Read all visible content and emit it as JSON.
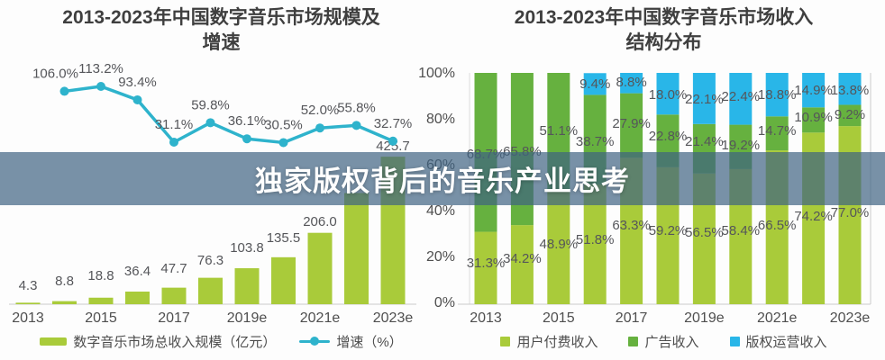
{
  "overlay_banner": {
    "title": "独家版权背后的音乐产业思考",
    "background": "rgba(62,99,130,0.70)",
    "text_color": "#ffffff"
  },
  "colors": {
    "bar_green": "#a9cb3a",
    "ads_green": "#66b13f",
    "copyright_blue": "#29b6e8",
    "growth_teal": "#2eb3cc",
    "label_gray": "#55565a",
    "axis_gray": "#4f4f4f",
    "axis_line": "#cccccc"
  },
  "chart_data": [
    {
      "type": "bar",
      "title": "2013-2023年中国数字音乐市场规模及增速",
      "title_lines": [
        "2013-2023年中国数字音乐市场规模及",
        "增速"
      ],
      "categories": [
        "2013",
        "2014",
        "2015",
        "2016",
        "2017",
        "2018",
        "2019e",
        "2020e",
        "2021e",
        "2022e",
        "2023e"
      ],
      "x_tick_labels": [
        "2013",
        "2015",
        "2017",
        "2019e",
        "2021e",
        "2023e"
      ],
      "grid": false,
      "legend_position": "bottom",
      "series": [
        {
          "name": "数字音乐市场总收入规模（亿元）",
          "type": "bar",
          "color": "#a9cb3a",
          "values": [
            4.3,
            8.8,
            18.8,
            36.4,
            47.7,
            76.3,
            103.8,
            135.5,
            206.0,
            320.8,
            425.7
          ],
          "labels": [
            "4.3",
            "8.8",
            "18.8",
            "36.4",
            "47.7",
            "76.3",
            "103.8",
            "135.5",
            "206.0",
            "",
            "425.7"
          ]
        },
        {
          "name": "增速（%）",
          "type": "line",
          "color": "#2eb3cc",
          "x_start_index": 1,
          "values": [
            106.0,
            113.2,
            93.4,
            31.1,
            59.8,
            36.1,
            30.5,
            52.0,
            55.8,
            32.7
          ],
          "labels": [
            "106.0%",
            "113.2%",
            "93.4%",
            "31.1%",
            "59.8%",
            "36.1%",
            "30.5%",
            "52.0%",
            "55.8%",
            "32.7%"
          ]
        }
      ],
      "legend": [
        {
          "label": "数字音乐市场总收入规模（亿元）",
          "color": "#a9cb3a",
          "marker": "bar"
        },
        {
          "label": "增速（%）",
          "color": "#2eb3cc",
          "marker": "line"
        }
      ]
    },
    {
      "type": "bar",
      "subtype": "stacked-100",
      "title": "2013-2023年中国数字音乐市场收入结构分布",
      "title_lines": [
        "2013-2023年中国数字音乐市场收入",
        "结构分布"
      ],
      "categories": [
        "2013",
        "2014",
        "2015",
        "2016",
        "2017",
        "2018",
        "2019e",
        "2020e",
        "2021e",
        "2022e",
        "2023e"
      ],
      "x_tick_labels": [
        "2013",
        "2015",
        "2017",
        "2019e",
        "2021e",
        "2023e"
      ],
      "y_tick_labels": [
        "0%",
        "20%",
        "40%",
        "60%",
        "80%",
        "100%"
      ],
      "ylim": [
        0,
        100
      ],
      "grid": false,
      "legend_position": "bottom",
      "series": [
        {
          "name": "用户付费收入",
          "color": "#a9cb3a",
          "values": [
            31.3,
            34.2,
            48.9,
            51.8,
            63.3,
            59.2,
            56.5,
            58.4,
            66.5,
            74.2,
            77.0
          ],
          "labels": [
            "31.3%",
            "34.2%",
            "48.9%",
            "51.8%",
            "63.3%",
            "59.2%",
            "56.5%",
            "58.4%",
            "66.5%",
            "74.2%",
            "77.0%"
          ]
        },
        {
          "name": "广告收入",
          "color": "#66b13f",
          "values": [
            68.7,
            65.8,
            51.1,
            38.7,
            27.9,
            22.8,
            21.4,
            19.2,
            14.7,
            10.9,
            9.2
          ],
          "labels": [
            "68.7%",
            "65.8%",
            "51.1%",
            "38.7%",
            "27.9%",
            "22.8%",
            "21.4%",
            "19.2%",
            "14.7%",
            "10.9%",
            "9.2%"
          ]
        },
        {
          "name": "版权运营收入",
          "color": "#29b6e8",
          "values": [
            0,
            0,
            0,
            9.4,
            8.8,
            18.0,
            22.1,
            22.4,
            18.8,
            14.9,
            13.8
          ],
          "labels": [
            "",
            "",
            "",
            "9.4%",
            "8.8%",
            "18.0%",
            "22.1%",
            "22.4%",
            "18.8%",
            "14.9%",
            "13.8%"
          ]
        }
      ],
      "legend": [
        {
          "label": "用户付费收入",
          "color": "#a9cb3a",
          "marker": "square"
        },
        {
          "label": "广告收入",
          "color": "#66b13f",
          "marker": "square"
        },
        {
          "label": "版权运营收入",
          "color": "#29b6e8",
          "marker": "square"
        }
      ]
    }
  ]
}
